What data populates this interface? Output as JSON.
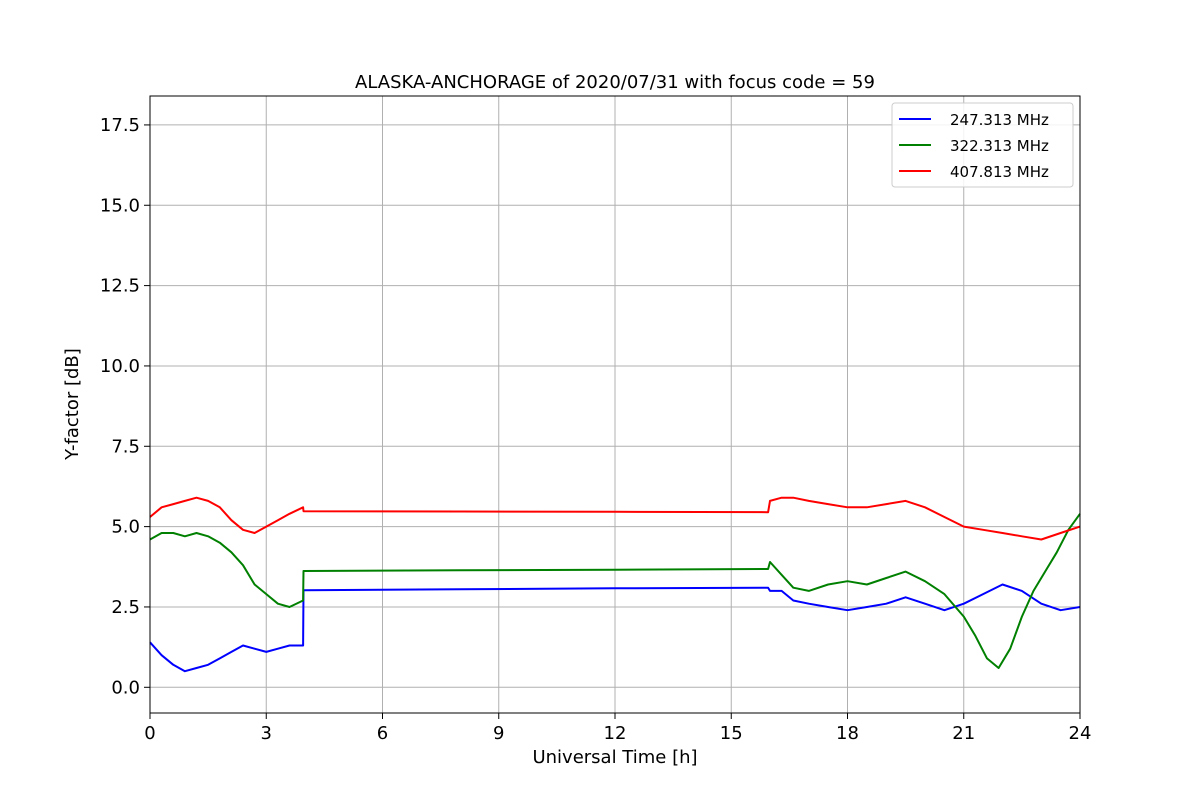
{
  "chart_data": {
    "type": "line",
    "title": "ALASKA-ANCHORAGE of 2020/07/31 with focus code = 59",
    "xlabel": "Universal Time [h]",
    "ylabel": "Y-factor [dB]",
    "xlim": [
      0,
      24
    ],
    "ylim": [
      -0.8,
      18.4
    ],
    "xticks": [
      0,
      3,
      6,
      9,
      12,
      15,
      18,
      21,
      24
    ],
    "yticks": [
      0.0,
      2.5,
      5.0,
      7.5,
      10.0,
      12.5,
      15.0,
      17.5
    ],
    "ytick_labels": [
      "0.0",
      "2.5",
      "5.0",
      "7.5",
      "10.0",
      "12.5",
      "15.0",
      "17.5"
    ],
    "grid": true,
    "legend_position": "top-right",
    "series": [
      {
        "name": "247.313 MHz",
        "color": "#0000ff",
        "x": [
          0,
          0.3,
          0.6,
          0.9,
          1.2,
          1.5,
          1.8,
          2.1,
          2.4,
          2.7,
          3.0,
          3.3,
          3.6,
          3.95,
          3.96,
          8.0,
          12.0,
          15.95,
          16.0,
          16.3,
          16.6,
          17.0,
          17.5,
          18.0,
          18.5,
          19.0,
          19.5,
          20.0,
          20.5,
          21.0,
          21.5,
          22.0,
          22.5,
          23.0,
          23.5,
          24.0
        ],
        "y": [
          1.4,
          1.0,
          0.7,
          0.5,
          0.6,
          0.7,
          0.9,
          1.1,
          1.3,
          1.2,
          1.1,
          1.2,
          1.3,
          1.3,
          3.02,
          3.05,
          3.08,
          3.1,
          3.0,
          3.0,
          2.7,
          2.6,
          2.5,
          2.4,
          2.5,
          2.6,
          2.8,
          2.6,
          2.4,
          2.6,
          2.9,
          3.2,
          3.0,
          2.6,
          2.4,
          2.5
        ]
      },
      {
        "name": "322.313 MHz",
        "color": "#008000",
        "x": [
          0,
          0.3,
          0.6,
          0.9,
          1.2,
          1.5,
          1.8,
          2.1,
          2.4,
          2.7,
          3.0,
          3.3,
          3.6,
          3.95,
          3.96,
          8.0,
          12.0,
          15.95,
          16.0,
          16.3,
          16.6,
          17.0,
          17.5,
          18.0,
          18.5,
          19.0,
          19.5,
          20.0,
          20.5,
          21.0,
          21.3,
          21.6,
          21.9,
          22.2,
          22.5,
          22.8,
          23.1,
          23.4,
          23.7,
          24.0
        ],
        "y": [
          4.6,
          4.8,
          4.8,
          4.7,
          4.8,
          4.7,
          4.5,
          4.2,
          3.8,
          3.2,
          2.9,
          2.6,
          2.5,
          2.7,
          3.62,
          3.64,
          3.66,
          3.68,
          3.9,
          3.5,
          3.1,
          3.0,
          3.2,
          3.3,
          3.2,
          3.4,
          3.6,
          3.3,
          2.9,
          2.2,
          1.6,
          0.9,
          0.6,
          1.2,
          2.2,
          3.0,
          3.6,
          4.2,
          4.9,
          5.4
        ]
      },
      {
        "name": "407.813 MHz",
        "color": "#ff0000",
        "x": [
          0,
          0.3,
          0.6,
          0.9,
          1.2,
          1.5,
          1.8,
          2.1,
          2.4,
          2.7,
          3.0,
          3.3,
          3.6,
          3.95,
          3.96,
          8.0,
          12.0,
          15.95,
          16.0,
          16.3,
          16.6,
          17.0,
          17.5,
          18.0,
          18.5,
          19.0,
          19.5,
          20.0,
          20.5,
          21.0,
          21.5,
          22.0,
          22.5,
          23.0,
          23.5,
          24.0
        ],
        "y": [
          5.3,
          5.6,
          5.7,
          5.8,
          5.9,
          5.8,
          5.6,
          5.2,
          4.9,
          4.8,
          5.0,
          5.2,
          5.4,
          5.6,
          5.48,
          5.47,
          5.46,
          5.45,
          5.8,
          5.9,
          5.9,
          5.8,
          5.7,
          5.6,
          5.6,
          5.7,
          5.8,
          5.6,
          5.3,
          5.0,
          4.9,
          4.8,
          4.7,
          4.6,
          4.8,
          5.0
        ]
      }
    ]
  }
}
